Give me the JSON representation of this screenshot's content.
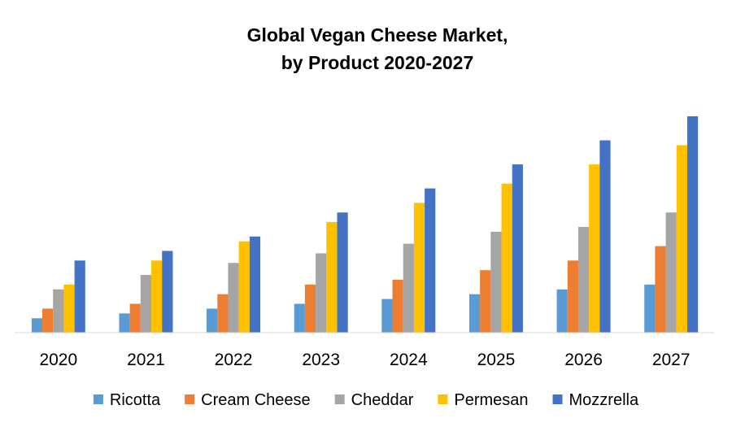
{
  "chart_data": {
    "type": "bar",
    "title_lines": [
      "Global Vegan Cheese Market,",
      "by Product 2020-2027"
    ],
    "categories": [
      "2020",
      "2021",
      "2022",
      "2023",
      "2024",
      "2025",
      "2026",
      "2027"
    ],
    "series": [
      {
        "name": "Ricotta",
        "color": "#5B9BD5",
        "values": [
          3,
          4,
          5,
          6,
          7,
          8,
          9,
          10
        ]
      },
      {
        "name": "Cream Cheese",
        "color": "#ED7D31",
        "values": [
          5,
          6,
          8,
          10,
          11,
          13,
          15,
          18
        ]
      },
      {
        "name": "Cheddar",
        "color": "#A5A5A5",
        "values": [
          9,
          12,
          14.5,
          16.5,
          18.5,
          21,
          22,
          25
        ]
      },
      {
        "name": "Permesan",
        "color": "#FFC000",
        "values": [
          10,
          15,
          19,
          23,
          27,
          31,
          35,
          39
        ]
      },
      {
        "name": "Mozzrella",
        "color": "#4472C4",
        "values": [
          15,
          17,
          20,
          25,
          30,
          35,
          40,
          45
        ]
      }
    ],
    "ylim": [
      0,
      45
    ],
    "xlabel": "",
    "ylabel": "",
    "grid": false,
    "y_axis_labels_shown": false,
    "legend_position": "bottom",
    "axis_color": "#D9D9D9"
  }
}
